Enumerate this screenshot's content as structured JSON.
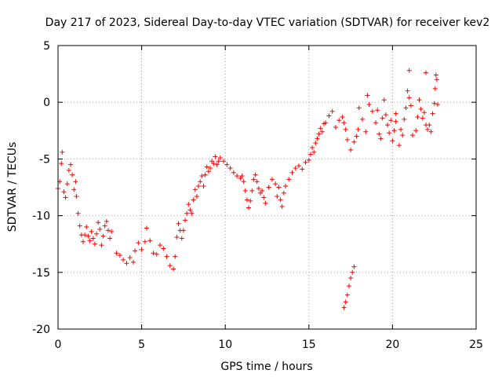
{
  "chart_data": {
    "type": "scatter",
    "title": "Day 217 of 2023, Sidereal Day-to-day VTEC variation (SDTVAR) for receiver kev2",
    "xlabel": "GPS time / hours",
    "ylabel": "SDTVAR / TECUs",
    "xlim": [
      0,
      25
    ],
    "ylim": [
      -20,
      5
    ],
    "xticks": [
      0,
      5,
      10,
      15,
      20,
      25
    ],
    "yticks": [
      -20,
      -15,
      -10,
      -5,
      0,
      5
    ],
    "grid": true,
    "marker": "+",
    "marker_color": "#ff0000",
    "series": [
      {
        "name": "kev2",
        "points": [
          [
            0.0,
            -7.6
          ],
          [
            0.1,
            -7.0
          ],
          [
            0.2,
            -5.4
          ],
          [
            0.25,
            -4.4
          ],
          [
            0.35,
            -7.9
          ],
          [
            0.45,
            -8.4
          ],
          [
            0.55,
            -7.2
          ],
          [
            0.65,
            -6.0
          ],
          [
            0.75,
            -5.5
          ],
          [
            0.85,
            -6.4
          ],
          [
            0.95,
            -7.7
          ],
          [
            1.05,
            -7.0
          ],
          [
            1.1,
            -8.3
          ],
          [
            1.2,
            -9.8
          ],
          [
            1.3,
            -10.9
          ],
          [
            1.4,
            -11.7
          ],
          [
            1.5,
            -12.3
          ],
          [
            1.6,
            -11.7
          ],
          [
            1.7,
            -11.0
          ],
          [
            1.8,
            -11.8
          ],
          [
            1.9,
            -12.2
          ],
          [
            2.0,
            -11.4
          ],
          [
            2.1,
            -12.0
          ],
          [
            2.2,
            -12.5
          ],
          [
            2.3,
            -11.6
          ],
          [
            2.4,
            -10.6
          ],
          [
            2.5,
            -11.2
          ],
          [
            2.6,
            -12.6
          ],
          [
            2.7,
            -11.8
          ],
          [
            2.8,
            -10.9
          ],
          [
            2.9,
            -10.5
          ],
          [
            3.0,
            -11.3
          ],
          [
            3.1,
            -12.0
          ],
          [
            3.2,
            -11.4
          ],
          [
            3.5,
            -13.3
          ],
          [
            3.7,
            -13.5
          ],
          [
            3.9,
            -13.9
          ],
          [
            4.1,
            -14.2
          ],
          [
            4.3,
            -13.7
          ],
          [
            4.5,
            -14.1
          ],
          [
            4.6,
            -13.1
          ],
          [
            4.8,
            -12.4
          ],
          [
            5.0,
            -13.0
          ],
          [
            5.2,
            -12.3
          ],
          [
            5.3,
            -11.1
          ],
          [
            5.5,
            -12.2
          ],
          [
            5.7,
            -13.3
          ],
          [
            5.9,
            -13.4
          ],
          [
            6.1,
            -12.6
          ],
          [
            6.3,
            -12.9
          ],
          [
            6.5,
            -13.6
          ],
          [
            6.7,
            -14.4
          ],
          [
            6.9,
            -14.7
          ],
          [
            7.0,
            -13.6
          ],
          [
            7.1,
            -11.9
          ],
          [
            7.2,
            -10.7
          ],
          [
            7.3,
            -11.3
          ],
          [
            7.4,
            -12.0
          ],
          [
            7.5,
            -11.3
          ],
          [
            7.6,
            -10.4
          ],
          [
            7.7,
            -9.8
          ],
          [
            7.8,
            -9.0
          ],
          [
            7.9,
            -9.5
          ],
          [
            8.0,
            -9.8
          ],
          [
            8.1,
            -8.6
          ],
          [
            8.2,
            -7.7
          ],
          [
            8.3,
            -8.3
          ],
          [
            8.4,
            -7.4
          ],
          [
            8.5,
            -7.0
          ],
          [
            8.6,
            -6.5
          ],
          [
            8.7,
            -7.4
          ],
          [
            8.8,
            -6.4
          ],
          [
            8.9,
            -5.7
          ],
          [
            9.0,
            -6.1
          ],
          [
            9.1,
            -5.8
          ],
          [
            9.2,
            -5.2
          ],
          [
            9.3,
            -5.4
          ],
          [
            9.4,
            -4.8
          ],
          [
            9.5,
            -5.5
          ],
          [
            9.6,
            -5.2
          ],
          [
            9.7,
            -4.9
          ],
          [
            9.9,
            -5.2
          ],
          [
            10.1,
            -5.5
          ],
          [
            10.3,
            -5.8
          ],
          [
            10.5,
            -6.2
          ],
          [
            10.7,
            -6.5
          ],
          [
            10.9,
            -6.7
          ],
          [
            11.0,
            -6.5
          ],
          [
            11.1,
            -7.0
          ],
          [
            11.2,
            -7.8
          ],
          [
            11.3,
            -8.6
          ],
          [
            11.4,
            -9.3
          ],
          [
            11.5,
            -8.7
          ],
          [
            11.6,
            -7.8
          ],
          [
            11.7,
            -6.8
          ],
          [
            11.8,
            -6.4
          ],
          [
            11.9,
            -7.0
          ],
          [
            12.0,
            -7.6
          ],
          [
            12.1,
            -8.0
          ],
          [
            12.2,
            -7.8
          ],
          [
            12.3,
            -8.4
          ],
          [
            12.4,
            -8.9
          ],
          [
            12.6,
            -7.5
          ],
          [
            12.8,
            -6.8
          ],
          [
            13.0,
            -7.2
          ],
          [
            13.1,
            -8.3
          ],
          [
            13.2,
            -7.5
          ],
          [
            13.3,
            -8.6
          ],
          [
            13.4,
            -9.2
          ],
          [
            13.5,
            -8.0
          ],
          [
            13.6,
            -7.4
          ],
          [
            13.8,
            -6.8
          ],
          [
            14.0,
            -6.2
          ],
          [
            14.2,
            -5.8
          ],
          [
            14.4,
            -5.6
          ],
          [
            14.6,
            -5.9
          ],
          [
            14.8,
            -5.3
          ],
          [
            15.0,
            -5.1
          ],
          [
            15.1,
            -4.6
          ],
          [
            15.2,
            -4.0
          ],
          [
            15.3,
            -4.4
          ],
          [
            15.4,
            -3.6
          ],
          [
            15.5,
            -3.2
          ],
          [
            15.6,
            -2.8
          ],
          [
            15.7,
            -2.3
          ],
          [
            15.8,
            -2.6
          ],
          [
            15.9,
            -1.9
          ],
          [
            16.0,
            -1.8
          ],
          [
            16.2,
            -1.2
          ],
          [
            16.4,
            -0.8
          ],
          [
            16.6,
            -2.2
          ],
          [
            16.8,
            -1.6
          ],
          [
            17.0,
            -1.3
          ],
          [
            17.1,
            -1.8
          ],
          [
            17.2,
            -2.4
          ],
          [
            17.3,
            -3.3
          ],
          [
            17.5,
            -4.2
          ],
          [
            17.7,
            -3.5
          ],
          [
            17.85,
            -3.0
          ],
          [
            17.95,
            -2.4
          ],
          [
            17.1,
            -18.1
          ],
          [
            17.2,
            -17.6
          ],
          [
            17.3,
            -17.0
          ],
          [
            17.4,
            -16.2
          ],
          [
            17.5,
            -15.5
          ],
          [
            17.6,
            -15.0
          ],
          [
            17.7,
            -14.5
          ],
          [
            18.0,
            -0.5
          ],
          [
            18.2,
            -1.5
          ],
          [
            18.4,
            -2.6
          ],
          [
            18.5,
            0.6
          ],
          [
            18.6,
            -0.2
          ],
          [
            18.8,
            -0.8
          ],
          [
            19.0,
            -1.8
          ],
          [
            19.1,
            -0.7
          ],
          [
            19.2,
            -2.8
          ],
          [
            19.3,
            -3.2
          ],
          [
            19.4,
            -1.4
          ],
          [
            19.6,
            -1.1
          ],
          [
            19.7,
            -2.0
          ],
          [
            19.8,
            -2.7
          ],
          [
            19.9,
            -1.6
          ],
          [
            20.0,
            -3.4
          ],
          [
            20.1,
            -2.5
          ],
          [
            20.2,
            -1.7
          ],
          [
            20.4,
            -3.8
          ],
          [
            20.5,
            -2.4
          ],
          [
            20.6,
            -2.9
          ],
          [
            20.7,
            -1.5
          ],
          [
            20.8,
            -0.5
          ],
          [
            20.9,
            1.0
          ],
          [
            21.0,
            0.4
          ],
          [
            21.1,
            -0.3
          ],
          [
            21.2,
            -2.9
          ],
          [
            21.4,
            -2.5
          ],
          [
            21.5,
            -1.3
          ],
          [
            21.6,
            0.2
          ],
          [
            21.7,
            -0.6
          ],
          [
            21.8,
            -1.4
          ],
          [
            21.9,
            -0.9
          ],
          [
            22.0,
            -2.0
          ],
          [
            22.1,
            -2.4
          ],
          [
            22.2,
            -2.0
          ],
          [
            22.3,
            -2.6
          ],
          [
            22.4,
            -1.0
          ],
          [
            22.5,
            -0.1
          ],
          [
            22.55,
            1.2
          ],
          [
            22.6,
            2.4
          ],
          [
            22.65,
            2.0
          ],
          [
            22.7,
            -0.2
          ],
          [
            21.0,
            2.8
          ],
          [
            22.0,
            2.6
          ],
          [
            20.2,
            -1.0
          ],
          [
            19.5,
            0.2
          ]
        ]
      }
    ]
  }
}
